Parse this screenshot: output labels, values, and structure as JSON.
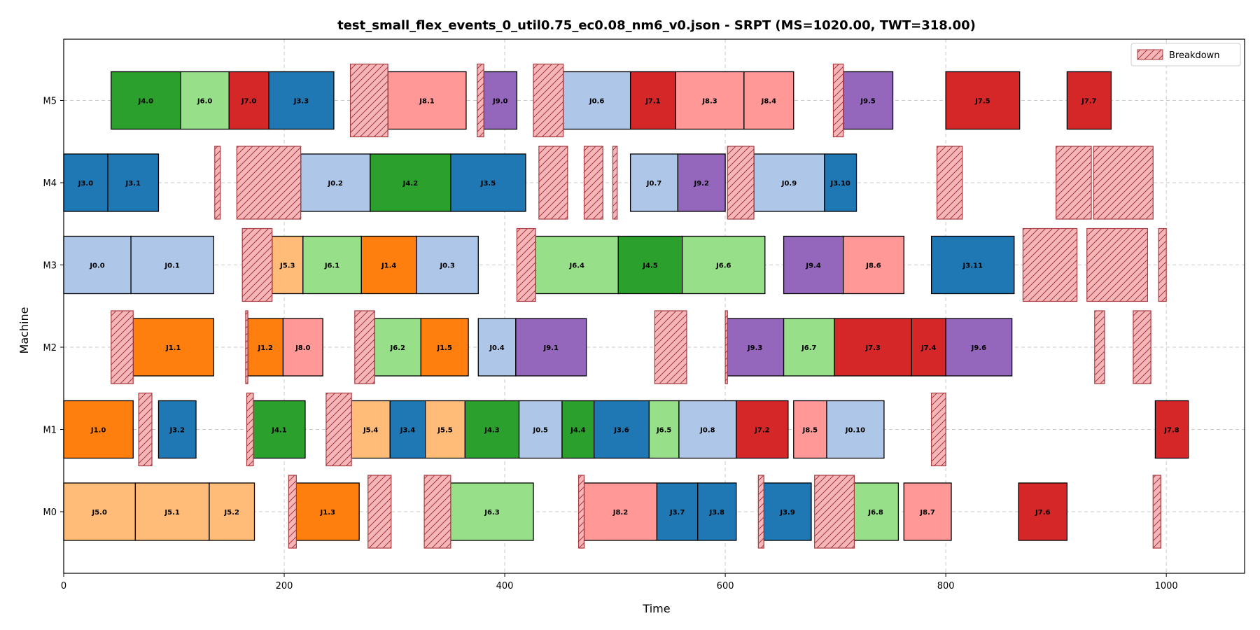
{
  "chart_data": {
    "type": "gantt",
    "title": "test_small_flex_events_0_util0.75_ec0.08_nm6_v0.json - SRPT (MS=1020.00, TWT=318.00)",
    "xlabel": "Time",
    "ylabel": "Machine",
    "xlim": [
      0,
      1071
    ],
    "xticks": [
      0,
      200,
      400,
      600,
      800,
      1000
    ],
    "machines": [
      "M0",
      "M1",
      "M2",
      "M3",
      "M4",
      "M5"
    ],
    "grid": true,
    "legend": {
      "position": "top-right",
      "label": "Breakdown"
    },
    "job_colors": {
      "J0": "#aec7e8",
      "J1": "#ff7f0e",
      "J3": "#1f77b4",
      "J4": "#2ca02c",
      "J5": "#ffbb78",
      "J6": "#98df8a",
      "J7": "#d62728",
      "J8": "#ff9896",
      "J9": "#9467bd"
    },
    "breakdown_color": "#f4b6b9",
    "operations": [
      {
        "machine": "M0",
        "label": "J5.0",
        "job": "J5",
        "start": 0,
        "end": 65
      },
      {
        "machine": "M0",
        "label": "J5.1",
        "job": "J5",
        "start": 65,
        "end": 132
      },
      {
        "machine": "M0",
        "label": "J5.2",
        "job": "J5",
        "start": 132,
        "end": 173
      },
      {
        "machine": "M0",
        "label": "J1.3",
        "job": "J1",
        "start": 211,
        "end": 268
      },
      {
        "machine": "M0",
        "label": "J6.3",
        "job": "J6",
        "start": 351,
        "end": 426
      },
      {
        "machine": "M0",
        "label": "J8.2",
        "job": "J8",
        "start": 472,
        "end": 538
      },
      {
        "machine": "M0",
        "label": "J3.7",
        "job": "J3",
        "start": 538,
        "end": 575
      },
      {
        "machine": "M0",
        "label": "J3.8",
        "job": "J3",
        "start": 575,
        "end": 610
      },
      {
        "machine": "M0",
        "label": "J3.9",
        "job": "J3",
        "start": 635,
        "end": 678
      },
      {
        "machine": "M0",
        "label": "J6.8",
        "job": "J6",
        "start": 716,
        "end": 757
      },
      {
        "machine": "M0",
        "label": "J8.7",
        "job": "J8",
        "start": 762,
        "end": 805
      },
      {
        "machine": "M0",
        "label": "J7.6",
        "job": "J7",
        "start": 866,
        "end": 910
      },
      {
        "machine": "M1",
        "label": "J1.0",
        "job": "J1",
        "start": 0,
        "end": 63
      },
      {
        "machine": "M1",
        "label": "J3.2",
        "job": "J3",
        "start": 86,
        "end": 120
      },
      {
        "machine": "M1",
        "label": "J4.1",
        "job": "J4",
        "start": 172,
        "end": 219
      },
      {
        "machine": "M1",
        "label": "J5.4",
        "job": "J5",
        "start": 261,
        "end": 296
      },
      {
        "machine": "M1",
        "label": "J3.4",
        "job": "J3",
        "start": 296,
        "end": 328
      },
      {
        "machine": "M1",
        "label": "J5.5",
        "job": "J5",
        "start": 328,
        "end": 364
      },
      {
        "machine": "M1",
        "label": "J4.3",
        "job": "J4",
        "start": 364,
        "end": 413
      },
      {
        "machine": "M1",
        "label": "J0.5",
        "job": "J0",
        "start": 413,
        "end": 452
      },
      {
        "machine": "M1",
        "label": "J4.4",
        "job": "J4",
        "start": 452,
        "end": 481
      },
      {
        "machine": "M1",
        "label": "J3.6",
        "job": "J3",
        "start": 481,
        "end": 531
      },
      {
        "machine": "M1",
        "label": "J6.5",
        "job": "J6",
        "start": 531,
        "end": 558
      },
      {
        "machine": "M1",
        "label": "J0.8",
        "job": "J0",
        "start": 558,
        "end": 610
      },
      {
        "machine": "M1",
        "label": "J7.2",
        "job": "J7",
        "start": 610,
        "end": 657
      },
      {
        "machine": "M1",
        "label": "J8.5",
        "job": "J8",
        "start": 662,
        "end": 692
      },
      {
        "machine": "M1",
        "label": "J0.10",
        "job": "J0",
        "start": 692,
        "end": 744
      },
      {
        "machine": "M1",
        "label": "J7.8",
        "job": "J7",
        "start": 990,
        "end": 1020
      },
      {
        "machine": "M2",
        "label": "J1.1",
        "job": "J1",
        "start": 63,
        "end": 136
      },
      {
        "machine": "M2",
        "label": "J1.2",
        "job": "J1",
        "start": 167,
        "end": 199
      },
      {
        "machine": "M2",
        "label": "J8.0",
        "job": "J8",
        "start": 199,
        "end": 235
      },
      {
        "machine": "M2",
        "label": "J6.2",
        "job": "J6",
        "start": 282,
        "end": 324
      },
      {
        "machine": "M2",
        "label": "J1.5",
        "job": "J1",
        "start": 324,
        "end": 367
      },
      {
        "machine": "M2",
        "label": "J0.4",
        "job": "J0",
        "start": 376,
        "end": 410
      },
      {
        "machine": "M2",
        "label": "J9.1",
        "job": "J9",
        "start": 410,
        "end": 474
      },
      {
        "machine": "M2",
        "label": "J9.3",
        "job": "J9",
        "start": 601,
        "end": 653
      },
      {
        "machine": "M2",
        "label": "J6.7",
        "job": "J6",
        "start": 653,
        "end": 699
      },
      {
        "machine": "M2",
        "label": "J7.3",
        "job": "J7",
        "start": 699,
        "end": 769
      },
      {
        "machine": "M2",
        "label": "J7.4",
        "job": "J7",
        "start": 769,
        "end": 800
      },
      {
        "machine": "M2",
        "label": "J9.6",
        "job": "J9",
        "start": 800,
        "end": 860
      },
      {
        "machine": "M3",
        "label": "J0.0",
        "job": "J0",
        "start": 0,
        "end": 61
      },
      {
        "machine": "M3",
        "label": "J0.1",
        "job": "J0",
        "start": 61,
        "end": 136
      },
      {
        "machine": "M3",
        "label": "J5.3",
        "job": "J5",
        "start": 189,
        "end": 217
      },
      {
        "machine": "M3",
        "label": "J6.1",
        "job": "J6",
        "start": 217,
        "end": 270
      },
      {
        "machine": "M3",
        "label": "J1.4",
        "job": "J1",
        "start": 270,
        "end": 320
      },
      {
        "machine": "M3",
        "label": "J0.3",
        "job": "J0",
        "start": 320,
        "end": 376
      },
      {
        "machine": "M3",
        "label": "J6.4",
        "job": "J6",
        "start": 428,
        "end": 503
      },
      {
        "machine": "M3",
        "label": "J4.5",
        "job": "J4",
        "start": 503,
        "end": 561
      },
      {
        "machine": "M3",
        "label": "J6.6",
        "job": "J6",
        "start": 561,
        "end": 636
      },
      {
        "machine": "M3",
        "label": "J9.4",
        "job": "J9",
        "start": 653,
        "end": 707
      },
      {
        "machine": "M3",
        "label": "J8.6",
        "job": "J8",
        "start": 707,
        "end": 762
      },
      {
        "machine": "M3",
        "label": "J3.11",
        "job": "J3",
        "start": 787,
        "end": 862
      },
      {
        "machine": "M4",
        "label": "J3.0",
        "job": "J3",
        "start": 0,
        "end": 40
      },
      {
        "machine": "M4",
        "label": "J3.1",
        "job": "J3",
        "start": 40,
        "end": 86
      },
      {
        "machine": "M4",
        "label": "J0.2",
        "job": "J0",
        "start": 215,
        "end": 278
      },
      {
        "machine": "M4",
        "label": "J4.2",
        "job": "J4",
        "start": 278,
        "end": 351
      },
      {
        "machine": "M4",
        "label": "J3.5",
        "job": "J3",
        "start": 351,
        "end": 419
      },
      {
        "machine": "M4",
        "label": "J0.7",
        "job": "J0",
        "start": 514,
        "end": 557
      },
      {
        "machine": "M4",
        "label": "J9.2",
        "job": "J9",
        "start": 557,
        "end": 600
      },
      {
        "machine": "M4",
        "label": "J0.9",
        "job": "J0",
        "start": 626,
        "end": 690
      },
      {
        "machine": "M4",
        "label": "J3.10",
        "job": "J3",
        "start": 690,
        "end": 719
      },
      {
        "machine": "M5",
        "label": "J4.0",
        "job": "J4",
        "start": 43,
        "end": 106
      },
      {
        "machine": "M5",
        "label": "J6.0",
        "job": "J6",
        "start": 106,
        "end": 150
      },
      {
        "machine": "M5",
        "label": "J7.0",
        "job": "J7",
        "start": 150,
        "end": 186
      },
      {
        "machine": "M5",
        "label": "J3.3",
        "job": "J3",
        "start": 186,
        "end": 245
      },
      {
        "machine": "M5",
        "label": "J8.1",
        "job": "J8",
        "start": 294,
        "end": 365
      },
      {
        "machine": "M5",
        "label": "J9.0",
        "job": "J9",
        "start": 381,
        "end": 411
      },
      {
        "machine": "M5",
        "label": "J0.6",
        "job": "J0",
        "start": 453,
        "end": 514
      },
      {
        "machine": "M5",
        "label": "J7.1",
        "job": "J7",
        "start": 514,
        "end": 555
      },
      {
        "machine": "M5",
        "label": "J8.3",
        "job": "J8",
        "start": 555,
        "end": 617
      },
      {
        "machine": "M5",
        "label": "J8.4",
        "job": "J8",
        "start": 617,
        "end": 662
      },
      {
        "machine": "M5",
        "label": "J9.5",
        "job": "J9",
        "start": 707,
        "end": 752
      },
      {
        "machine": "M5",
        "label": "J7.5",
        "job": "J7",
        "start": 800,
        "end": 867
      },
      {
        "machine": "M5",
        "label": "J7.7",
        "job": "J7",
        "start": 910,
        "end": 950
      }
    ],
    "breakdowns": [
      {
        "machine": "M0",
        "start": 204,
        "end": 211
      },
      {
        "machine": "M0",
        "start": 276,
        "end": 297
      },
      {
        "machine": "M0",
        "start": 327,
        "end": 351
      },
      {
        "machine": "M0",
        "start": 467,
        "end": 472
      },
      {
        "machine": "M0",
        "start": 630,
        "end": 635
      },
      {
        "machine": "M0",
        "start": 681,
        "end": 717
      },
      {
        "machine": "M0",
        "start": 988,
        "end": 995
      },
      {
        "machine": "M1",
        "start": 68,
        "end": 80
      },
      {
        "machine": "M1",
        "start": 166,
        "end": 172
      },
      {
        "machine": "M1",
        "start": 238,
        "end": 261
      },
      {
        "machine": "M1",
        "start": 787,
        "end": 800
      },
      {
        "machine": "M2",
        "start": 43,
        "end": 63
      },
      {
        "machine": "M2",
        "start": 165,
        "end": 167
      },
      {
        "machine": "M2",
        "start": 264,
        "end": 282
      },
      {
        "machine": "M2",
        "start": 536,
        "end": 565
      },
      {
        "machine": "M2",
        "start": 600,
        "end": 602
      },
      {
        "machine": "M2",
        "start": 935,
        "end": 944
      },
      {
        "machine": "M2",
        "start": 970,
        "end": 986
      },
      {
        "machine": "M3",
        "start": 162,
        "end": 189
      },
      {
        "machine": "M3",
        "start": 411,
        "end": 428
      },
      {
        "machine": "M3",
        "start": 870,
        "end": 919
      },
      {
        "machine": "M3",
        "start": 928,
        "end": 983
      },
      {
        "machine": "M3",
        "start": 993,
        "end": 1000
      },
      {
        "machine": "M4",
        "start": 137,
        "end": 142
      },
      {
        "machine": "M4",
        "start": 157,
        "end": 215
      },
      {
        "machine": "M4",
        "start": 431,
        "end": 457
      },
      {
        "machine": "M4",
        "start": 472,
        "end": 489
      },
      {
        "machine": "M4",
        "start": 498,
        "end": 502
      },
      {
        "machine": "M4",
        "start": 602,
        "end": 626
      },
      {
        "machine": "M4",
        "start": 792,
        "end": 815
      },
      {
        "machine": "M4",
        "start": 900,
        "end": 932
      },
      {
        "machine": "M4",
        "start": 934,
        "end": 988
      },
      {
        "machine": "M5",
        "start": 260,
        "end": 294
      },
      {
        "machine": "M5",
        "start": 375,
        "end": 381
      },
      {
        "machine": "M5",
        "start": 426,
        "end": 453
      },
      {
        "machine": "M5",
        "start": 698,
        "end": 707
      }
    ]
  }
}
